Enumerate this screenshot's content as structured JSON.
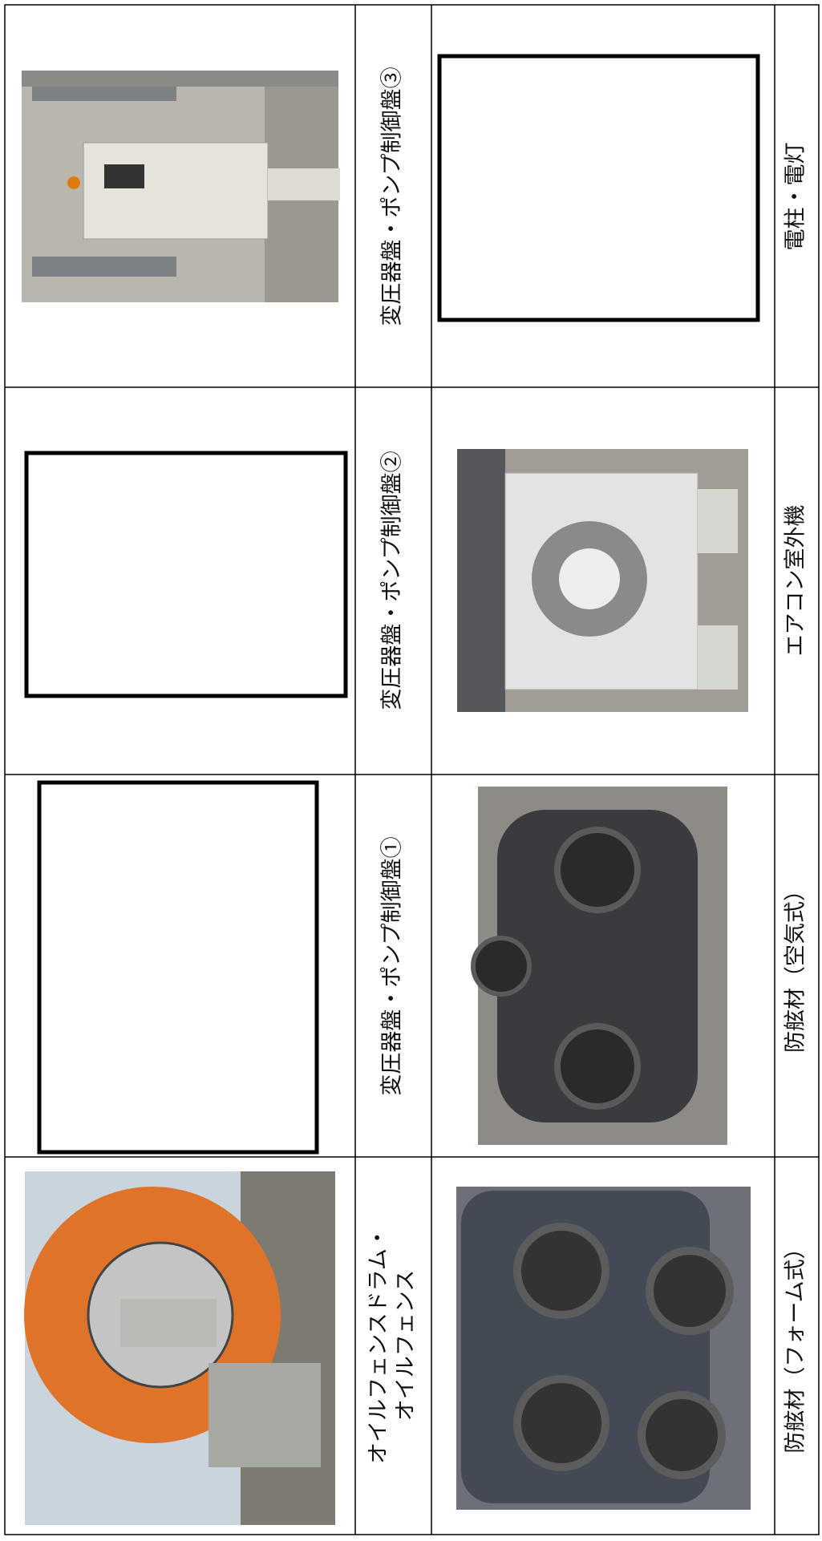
{
  "table": {
    "rows": [
      {
        "label_a": [
          "変圧器盤・ポンプ制御盤③"
        ],
        "label_b": "電柱・電灯"
      },
      {
        "label_a": [
          "変圧器盤・ポンプ制御盤②"
        ],
        "label_b": "エアコン室外機"
      },
      {
        "label_a": [
          "変圧器盤・ポンプ制御盤①"
        ],
        "label_b": "防舷材（空気式）"
      },
      {
        "label_a": [
          "オイルフェンスドラム・",
          "オイルフェンス"
        ],
        "label_b": "防舷材（フォーム式）"
      }
    ]
  }
}
